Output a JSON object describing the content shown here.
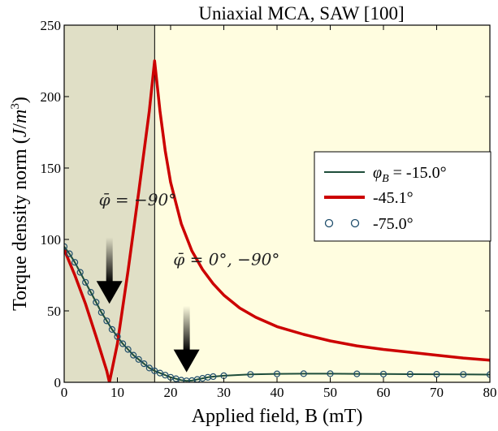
{
  "chart_data": {
    "type": "line",
    "title": "Uniaxial MCA, SAW [100]",
    "xlabel": "Applied field, B (mT)",
    "ylabel": "Torque density norm (J/m³)",
    "ylabel_parts": {
      "main": "Torque density norm (",
      "var": "J",
      "slash": "/",
      "base": "m",
      "exp": "3",
      "close": ")"
    },
    "xlim": [
      0,
      80
    ],
    "ylim": [
      0,
      250
    ],
    "xticks": [
      "0",
      "10",
      "20",
      "30",
      "40",
      "50",
      "60",
      "70",
      "80"
    ],
    "yticks": [
      "0",
      "50",
      "100",
      "150",
      "200",
      "250"
    ],
    "grid": false,
    "legend_position": "center-right",
    "shaded_region": {
      "x": [
        0,
        17
      ],
      "color": "#e0dfc6"
    },
    "background_color": "#fffde0",
    "series": [
      {
        "name": "φB = -15.0°",
        "name_parts": {
          "sym": "φ",
          "sub": "B",
          "rest": " = -15.0°"
        },
        "style": "line",
        "color": "#1e4d3a",
        "x": [
          0,
          1,
          2,
          3,
          4,
          5,
          6,
          7,
          8,
          9,
          10,
          11,
          12,
          13,
          14,
          15,
          16,
          17,
          18,
          19,
          20,
          21,
          22,
          23,
          24,
          25,
          26,
          27,
          28,
          30,
          35,
          40,
          45,
          50,
          55,
          60,
          65,
          70,
          75,
          80
        ],
        "y": [
          95,
          90,
          84,
          77,
          70,
          63,
          56,
          49,
          43,
          37,
          32,
          27,
          23,
          19,
          16,
          13,
          10,
          8,
          6.5,
          5,
          3.5,
          2.5,
          1.5,
          1.0,
          1.2,
          2.0,
          2.8,
          3.5,
          4.0,
          4.6,
          5.5,
          5.9,
          6.0,
          6.0,
          5.9,
          5.8,
          5.7,
          5.6,
          5.5,
          5.4
        ]
      },
      {
        "name": "-45.1°",
        "style": "line",
        "color": "#cc0000",
        "x": [
          0,
          2,
          4,
          6,
          8,
          8.5,
          10,
          12,
          14,
          16,
          17,
          18,
          19,
          20,
          22,
          24,
          26,
          28,
          30,
          33,
          36,
          40,
          45,
          50,
          55,
          60,
          65,
          70,
          75,
          80
        ],
        "y": [
          93,
          75,
          55,
          32,
          8,
          0,
          27,
          78,
          133,
          190,
          225,
          190,
          162,
          140,
          111,
          92,
          79,
          69,
          61,
          52,
          45.5,
          39,
          33.5,
          29,
          25.5,
          23,
          21,
          19,
          17,
          15.5
        ]
      },
      {
        "name": "-75.0°",
        "style": "markers",
        "color": "#1e4d6b",
        "x": [
          0,
          1,
          2,
          3,
          4,
          5,
          6,
          7,
          8,
          9,
          10,
          11,
          12,
          13,
          14,
          15,
          16,
          17,
          18,
          19,
          20,
          21,
          22,
          23,
          24,
          25,
          26,
          27,
          28,
          30,
          35,
          40,
          45,
          50,
          55,
          60,
          65,
          70,
          75,
          80
        ],
        "y": [
          95,
          90,
          84,
          77,
          70,
          63,
          56,
          49,
          43,
          37,
          32,
          27,
          23,
          19,
          16,
          13,
          10,
          8,
          6.5,
          5,
          3.5,
          2.5,
          1.5,
          1.0,
          1.2,
          2.0,
          2.8,
          3.5,
          4.0,
          4.6,
          5.5,
          5.9,
          6.0,
          6.0,
          5.9,
          5.8,
          5.7,
          5.6,
          5.5,
          5.4
        ]
      }
    ],
    "annotations": [
      {
        "text": "φ̄ = −90°",
        "arrow_x": 8.5,
        "arrow_tip_y": 55,
        "label_x": 6.5,
        "label_y": 124
      },
      {
        "text": "φ̄ = 0°, −90°",
        "arrow_x": 23,
        "arrow_tip_y": 7,
        "label_x": 20.5,
        "label_y": 82
      }
    ]
  }
}
